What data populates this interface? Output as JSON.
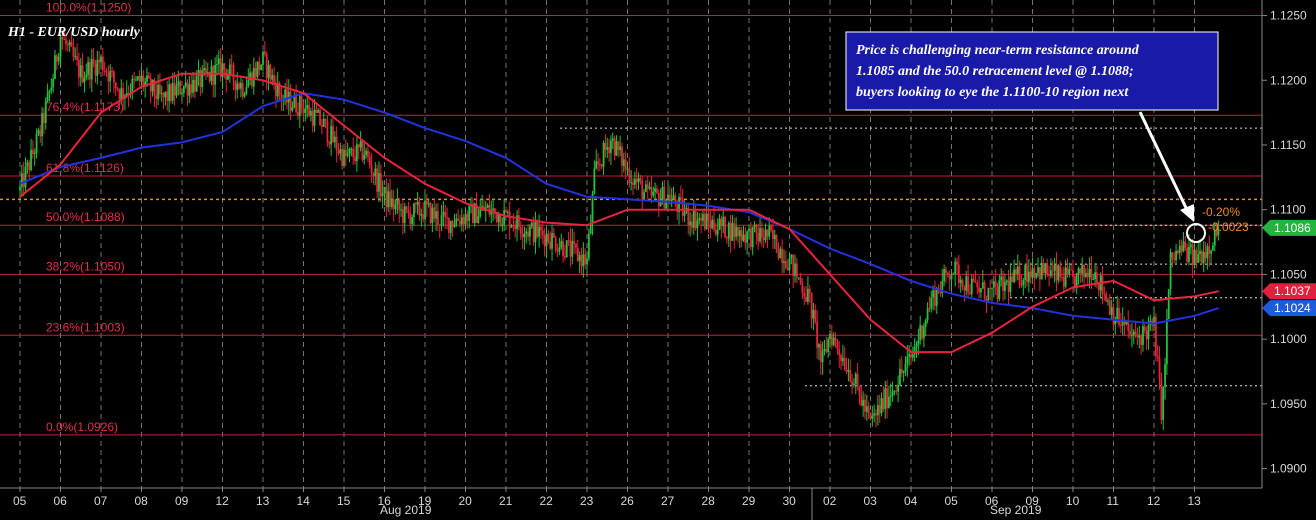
{
  "chart_data": {
    "type": "candlestick",
    "title": "H1 - EUR/USD hourly",
    "colors": {
      "background": "#000000",
      "bull": "#22c43a",
      "bear": "#e8243c",
      "ma_red": "#e8243c",
      "ma_blue": "#2233dd",
      "fib_line": "#c81e3c",
      "grid": "#9a9a9a",
      "orange": "#f08c1e",
      "badge_green": "#22b43c",
      "badge_red": "#e0203c",
      "badge_blue": "#1e5adc"
    },
    "y_axis": {
      "range": [
        1.0885,
        1.1262
      ],
      "ticks": [
        "1.1250",
        "1.1200",
        "1.1150",
        "1.1100",
        "1.1050",
        "1.1000",
        "1.0950",
        "1.0900"
      ]
    },
    "x_axis": {
      "ticks": [
        "05",
        "06",
        "07",
        "08",
        "09",
        "12",
        "13",
        "14",
        "15",
        "16",
        "19",
        "20",
        "21",
        "22",
        "23",
        "26",
        "27",
        "28",
        "29",
        "30",
        "02",
        "03",
        "04",
        "05",
        "06",
        "09",
        "10",
        "11",
        "12",
        "13"
      ],
      "months": [
        "Aug 2019",
        "Sep 2019"
      ]
    },
    "fib_levels": [
      {
        "label": "100.0%(1.1250)",
        "value": 1.125
      },
      {
        "label": "76.4%(1.1173)",
        "value": 1.1173
      },
      {
        "label": "61.8%(1.1126)",
        "value": 1.1126
      },
      {
        "label": "50.0%(1.1088)",
        "value": 1.1088
      },
      {
        "label": "38.2%(1.1050)",
        "value": 1.105
      },
      {
        "label": "23.6%(1.1003)",
        "value": 1.1003
      },
      {
        "label": "0.0%(1.0926)",
        "value": 1.0926
      }
    ],
    "dotted_levels": [
      1.1163,
      1.1088,
      1.1058,
      1.1032,
      1.0964
    ],
    "orange_level": 1.1108,
    "price_series": [
      [
        0,
        1.1115
      ],
      [
        0.5,
        1.116
      ],
      [
        0.8,
        1.12
      ],
      [
        1,
        1.1235
      ],
      [
        1.5,
        1.1205
      ],
      [
        2,
        1.1215
      ],
      [
        2.5,
        1.119
      ],
      [
        3,
        1.12
      ],
      [
        3.5,
        1.1185
      ],
      [
        4,
        1.1195
      ],
      [
        4.5,
        1.12
      ],
      [
        5,
        1.121
      ],
      [
        5.5,
        1.1195
      ],
      [
        6,
        1.1215
      ],
      [
        6.5,
        1.1185
      ],
      [
        7,
        1.118
      ],
      [
        7.5,
        1.1165
      ],
      [
        8,
        1.114
      ],
      [
        8.5,
        1.1145
      ],
      [
        9,
        1.111
      ],
      [
        9.5,
        1.1095
      ],
      [
        10,
        1.11
      ],
      [
        10.5,
        1.109
      ],
      [
        11,
        1.1095
      ],
      [
        11.5,
        1.11
      ],
      [
        12,
        1.1095
      ],
      [
        12.5,
        1.1085
      ],
      [
        13,
        1.108
      ],
      [
        13.5,
        1.107
      ],
      [
        14,
        1.106
      ],
      [
        14.2,
        1.113
      ],
      [
        14.6,
        1.1155
      ],
      [
        15,
        1.113
      ],
      [
        15.5,
        1.111
      ],
      [
        16,
        1.111
      ],
      [
        16.5,
        1.1095
      ],
      [
        17,
        1.109
      ],
      [
        17.5,
        1.1085
      ],
      [
        18,
        1.108
      ],
      [
        18.5,
        1.108
      ],
      [
        19,
        1.106
      ],
      [
        19.5,
        1.103
      ],
      [
        19.8,
        1.098
      ],
      [
        20,
        1.1005
      ],
      [
        20.5,
        1.0975
      ],
      [
        21,
        1.0935
      ],
      [
        21.5,
        1.096
      ],
      [
        22,
        1.0985
      ],
      [
        22.5,
        1.103
      ],
      [
        23,
        1.1055
      ],
      [
        23.5,
        1.104
      ],
      [
        24,
        1.1035
      ],
      [
        24.5,
        1.1045
      ],
      [
        25,
        1.1055
      ],
      [
        25.5,
        1.105
      ],
      [
        26,
        1.1045
      ],
      [
        26.5,
        1.1055
      ],
      [
        27,
        1.102
      ],
      [
        27.5,
        1.1
      ],
      [
        28,
        1.101
      ],
      [
        28.2,
        1.094
      ],
      [
        28.4,
        1.106
      ],
      [
        28.7,
        1.107
      ],
      [
        29,
        1.1062
      ],
      [
        29.3,
        1.107
      ],
      [
        29.6,
        1.1086
      ]
    ],
    "ma_red": [
      [
        0,
        1.111
      ],
      [
        1,
        1.1135
      ],
      [
        2,
        1.1175
      ],
      [
        3,
        1.1195
      ],
      [
        4,
        1.1205
      ],
      [
        5,
        1.1205
      ],
      [
        6,
        1.12
      ],
      [
        7,
        1.119
      ],
      [
        8,
        1.1165
      ],
      [
        9,
        1.114
      ],
      [
        10,
        1.112
      ],
      [
        11,
        1.1105
      ],
      [
        12,
        1.1095
      ],
      [
        13,
        1.109
      ],
      [
        14,
        1.1088
      ],
      [
        15,
        1.11
      ],
      [
        16,
        1.11
      ],
      [
        17,
        1.11
      ],
      [
        18,
        1.11
      ],
      [
        19,
        1.1085
      ],
      [
        20,
        1.105
      ],
      [
        21,
        1.1015
      ],
      [
        22,
        1.099
      ],
      [
        23,
        1.099
      ],
      [
        24,
        1.1005
      ],
      [
        25,
        1.1025
      ],
      [
        26,
        1.104
      ],
      [
        27,
        1.1045
      ],
      [
        28,
        1.103
      ],
      [
        29,
        1.1033
      ],
      [
        29.6,
        1.1037
      ]
    ],
    "ma_blue": [
      [
        0,
        1.112
      ],
      [
        1,
        1.1133
      ],
      [
        2,
        1.114
      ],
      [
        3,
        1.1148
      ],
      [
        4,
        1.1152
      ],
      [
        5,
        1.116
      ],
      [
        6,
        1.118
      ],
      [
        7,
        1.119
      ],
      [
        8,
        1.1185
      ],
      [
        9,
        1.1175
      ],
      [
        10,
        1.1163
      ],
      [
        11,
        1.1153
      ],
      [
        12,
        1.114
      ],
      [
        13,
        1.112
      ],
      [
        14,
        1.111
      ],
      [
        15,
        1.1108
      ],
      [
        16,
        1.1106
      ],
      [
        17,
        1.1103
      ],
      [
        18,
        1.1098
      ],
      [
        19,
        1.1085
      ],
      [
        20,
        1.107
      ],
      [
        21,
        1.1058
      ],
      [
        22,
        1.1045
      ],
      [
        23,
        1.1035
      ],
      [
        24,
        1.1028
      ],
      [
        25,
        1.1024
      ],
      [
        26,
        1.1018
      ],
      [
        27,
        1.1015
      ],
      [
        28,
        1.1012
      ],
      [
        29,
        1.1018
      ],
      [
        29.6,
        1.1024
      ]
    ],
    "annotation": {
      "lines": [
        "Price is challenging near-term resistance around",
        "1.1085 and the 50.0 retracement level @ 1.1088;",
        "buyers looking to eye the 1.1100-10 region next"
      ]
    },
    "orange_labels": [
      "-0.20%",
      "-0.0023"
    ],
    "badges": [
      {
        "label": "1.1086",
        "value": 1.1086,
        "color": "#22b43c"
      },
      {
        "label": "1.1037",
        "value": 1.1037,
        "color": "#e0203c"
      },
      {
        "label": "1.1024",
        "value": 1.1024,
        "color": "#1e5adc"
      }
    ]
  }
}
